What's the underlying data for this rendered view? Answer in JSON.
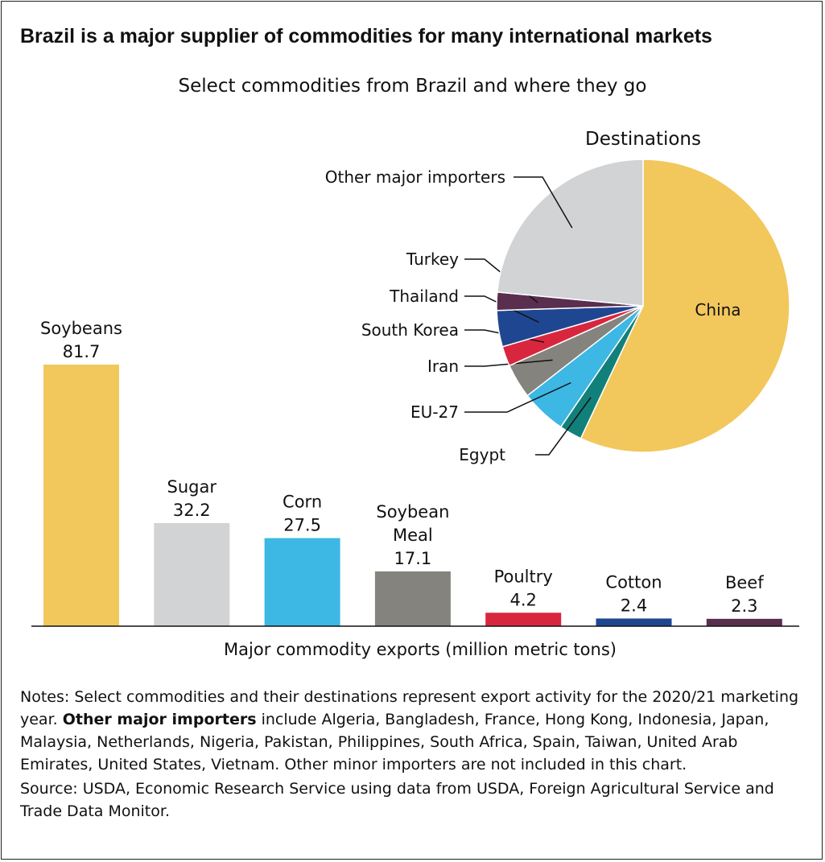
{
  "title": "Brazil is a major supplier of commodities for many international markets",
  "subtitle": "Select commodities from Brazil and where they go",
  "chart_data": [
    {
      "type": "bar",
      "xlabel": "Major commodity exports (million metric tons)",
      "categories": [
        [
          "Soybeans"
        ],
        [
          "Sugar"
        ],
        [
          "Corn"
        ],
        [
          "Soybean",
          "Meal"
        ],
        [
          "Poultry"
        ],
        [
          "Cotton"
        ],
        [
          "Beef"
        ]
      ],
      "values": [
        81.7,
        32.2,
        27.5,
        17.1,
        4.2,
        2.4,
        2.3
      ],
      "value_labels": [
        "81.7",
        "32.2",
        "27.5",
        "17.1",
        "4.2",
        "2.4",
        "2.3"
      ],
      "colors": [
        "#f2c75c",
        "#d1d3d4",
        "#3db7e4",
        "#85837e",
        "#d9263f",
        "#1f4690",
        "#5a2e4f"
      ]
    },
    {
      "type": "pie",
      "title": "Destinations",
      "slices": [
        {
          "label": "China",
          "value": 57,
          "color": "#f2c75c"
        },
        {
          "label": "Egypt",
          "value": 2.5,
          "color": "#12807a"
        },
        {
          "label": "EU-27",
          "value": 5,
          "color": "#3db7e4"
        },
        {
          "label": "Iran",
          "value": 3.8,
          "color": "#85837e"
        },
        {
          "label": "South Korea",
          "value": 2.2,
          "color": "#d9263f"
        },
        {
          "label": "Thailand",
          "value": 4,
          "color": "#1f4690"
        },
        {
          "label": "Turkey",
          "value": 2,
          "color": "#5a2e4f"
        },
        {
          "label": "Other major importers",
          "value": 23.5,
          "color": "#d1d3d4"
        }
      ]
    }
  ],
  "notes": {
    "prefix": "Notes: Select commodities and their destinations represent export activity for the 2020/21 marketing year. ",
    "bold": "Other major importers",
    "suffix": " include Algeria, Bangladesh, France, Hong Kong, Indonesia, Japan, Malaysia, Netherlands, Nigeria, Pakistan, Philippines, South Africa, Spain, Taiwan, United Arab Emirates, United States, Vietnam. Other minor importers are not included in this chart."
  },
  "source": "Source: USDA, Economic Research Service using data from USDA, Foreign Agricultural Service and Trade Data Monitor."
}
